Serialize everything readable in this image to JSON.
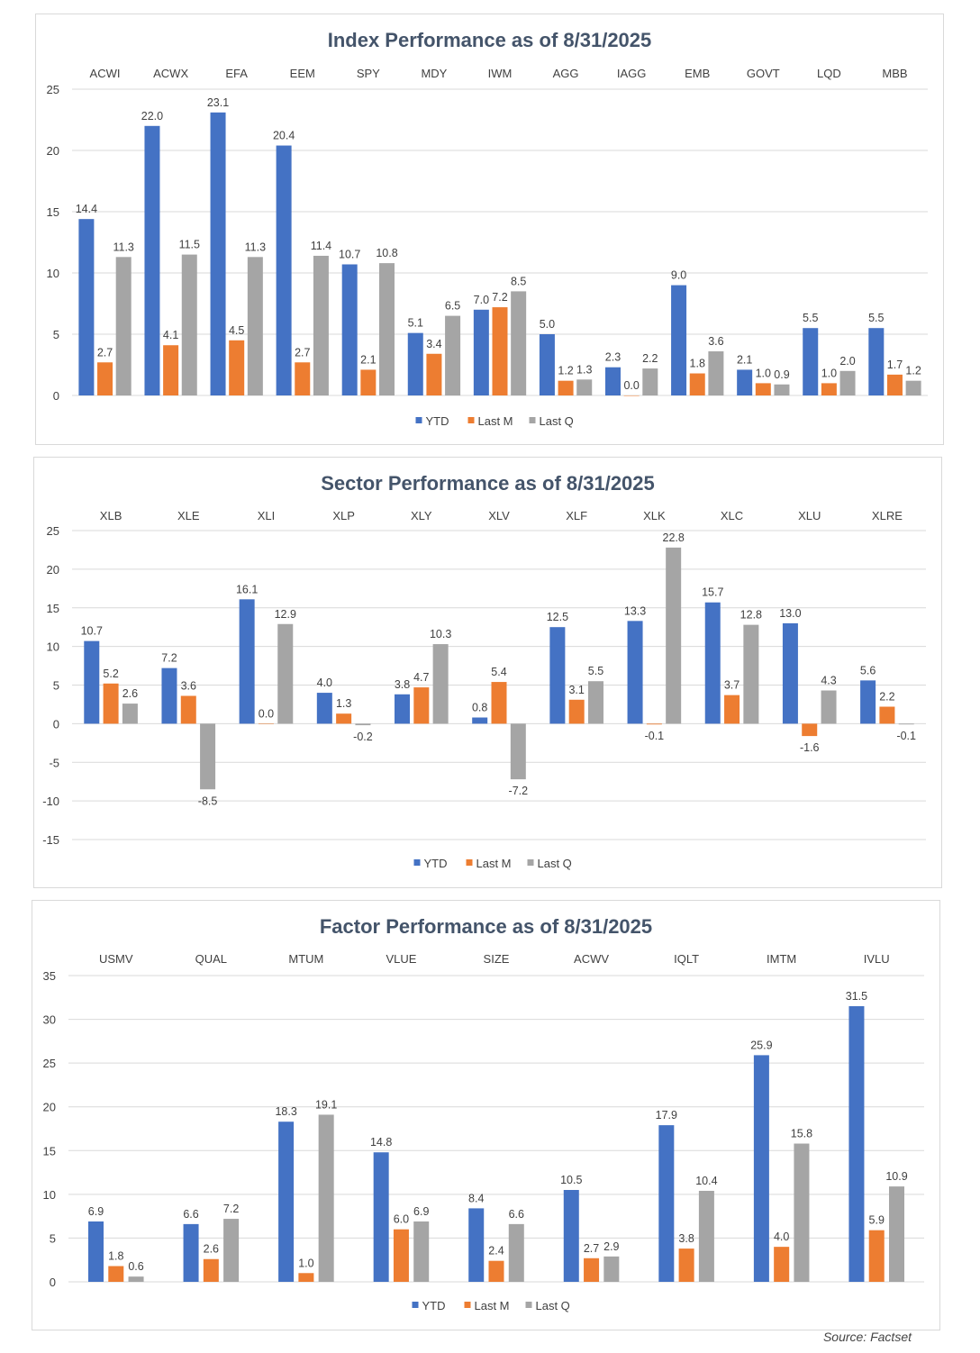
{
  "colors": {
    "ytd": "#4472c4",
    "last_m": "#ed7d31",
    "last_q": "#a5a5a5",
    "grid": "#d9d9d9",
    "text": "#404040",
    "title": "#44546a"
  },
  "legend_labels": [
    "YTD",
    "Last M",
    "Last Q"
  ],
  "source": "Source: Factset",
  "chart_data": [
    {
      "type": "bar",
      "title": "Index Performance as of 8/31/2025",
      "categories": [
        "ACWI",
        "ACWX",
        "EFA",
        "EEM",
        "SPY",
        "MDY",
        "IWM",
        "AGG",
        "IAGG",
        "EMB",
        "GOVT",
        "LQD",
        "MBB"
      ],
      "ylim": [
        0,
        25
      ],
      "yticks": [
        0,
        5,
        10,
        15,
        20,
        25
      ],
      "legend_position": "bottom",
      "grid": true,
      "series": [
        {
          "name": "YTD",
          "values": [
            14.4,
            22.0,
            23.1,
            20.4,
            10.7,
            5.1,
            7.0,
            5.0,
            2.3,
            9.0,
            2.1,
            5.5,
            5.5
          ]
        },
        {
          "name": "Last M",
          "values": [
            2.7,
            4.1,
            4.5,
            2.7,
            2.1,
            3.4,
            7.2,
            1.2,
            0.0,
            1.8,
            1.0,
            1.0,
            1.7
          ]
        },
        {
          "name": "Last Q",
          "values": [
            11.3,
            11.5,
            11.3,
            11.4,
            10.8,
            6.5,
            8.5,
            1.3,
            2.2,
            3.6,
            0.9,
            2.0,
            1.2
          ]
        }
      ]
    },
    {
      "type": "bar",
      "title": "Sector Performance as of 8/31/2025",
      "categories": [
        "XLB",
        "XLE",
        "XLI",
        "XLP",
        "XLY",
        "XLV",
        "XLF",
        "XLK",
        "XLC",
        "XLU",
        "XLRE"
      ],
      "ylim": [
        -15,
        25
      ],
      "yticks": [
        -15,
        -10,
        -5,
        0,
        5,
        10,
        15,
        20,
        25
      ],
      "legend_position": "bottom",
      "grid": true,
      "series": [
        {
          "name": "YTD",
          "values": [
            10.7,
            7.2,
            16.1,
            4.0,
            3.8,
            0.8,
            12.5,
            13.3,
            15.7,
            13.0,
            5.6
          ]
        },
        {
          "name": "Last M",
          "values": [
            5.2,
            3.6,
            0.0,
            1.3,
            4.7,
            5.4,
            3.1,
            -0.1,
            3.7,
            -1.6,
            2.2
          ]
        },
        {
          "name": "Last Q",
          "values": [
            2.6,
            -8.5,
            12.9,
            -0.2,
            10.3,
            -7.2,
            5.5,
            22.8,
            12.8,
            4.3,
            -0.1
          ]
        }
      ]
    },
    {
      "type": "bar",
      "title": "Factor Performance as of 8/31/2025",
      "categories": [
        "USMV",
        "QUAL",
        "MTUM",
        "VLUE",
        "SIZE",
        "ACWV",
        "IQLT",
        "IMTM",
        "IVLU"
      ],
      "ylim": [
        0,
        35
      ],
      "yticks": [
        0,
        5,
        10,
        15,
        20,
        25,
        30,
        35
      ],
      "legend_position": "bottom",
      "grid": true,
      "series": [
        {
          "name": "YTD",
          "values": [
            6.9,
            6.6,
            18.3,
            14.8,
            8.4,
            10.5,
            17.9,
            25.9,
            31.5
          ]
        },
        {
          "name": "Last M",
          "values": [
            1.8,
            2.6,
            1.0,
            6.0,
            2.4,
            2.7,
            3.8,
            4.0,
            5.9
          ]
        },
        {
          "name": "Last Q",
          "values": [
            0.6,
            7.2,
            19.1,
            6.9,
            6.6,
            2.9,
            10.4,
            15.8,
            10.9
          ]
        }
      ]
    }
  ]
}
